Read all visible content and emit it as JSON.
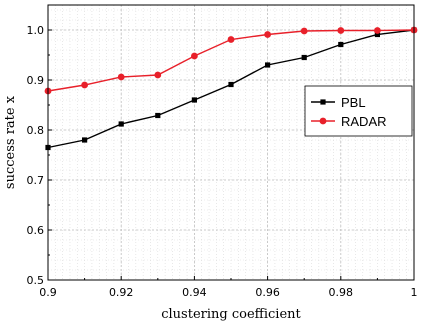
{
  "chart_data": {
    "type": "line",
    "title": "",
    "xlabel": "clustering coefficient",
    "ylabel": "success rate x",
    "xlim": [
      0.9,
      1.0
    ],
    "ylim": [
      0.5,
      1.05
    ],
    "x_ticks": [
      0.9,
      0.92,
      0.94,
      0.96,
      0.98,
      1.0
    ],
    "x_tick_labels": [
      "0.9",
      "0.92",
      "0.94",
      "0.96",
      "0.98",
      "1"
    ],
    "y_ticks": [
      0.5,
      0.6,
      0.7,
      0.8,
      0.9,
      1.0
    ],
    "y_tick_labels": [
      "0.5",
      "0.6",
      "0.7",
      "0.8",
      "0.9",
      "1.0"
    ],
    "grid": true,
    "legend_position": "right",
    "x": [
      0.9,
      0.91,
      0.92,
      0.93,
      0.94,
      0.95,
      0.96,
      0.97,
      0.98,
      0.99,
      1.0
    ],
    "series": [
      {
        "name": "PBL",
        "color": "#000000",
        "marker": "square",
        "values": [
          0.765,
          0.78,
          0.812,
          0.829,
          0.86,
          0.891,
          0.93,
          0.945,
          0.971,
          0.991,
          1.0
        ]
      },
      {
        "name": "RADAR",
        "color": "#e8202a",
        "marker": "circle",
        "values": [
          0.878,
          0.89,
          0.906,
          0.91,
          0.948,
          0.981,
          0.991,
          0.998,
          0.999,
          0.999,
          1.0
        ]
      }
    ]
  }
}
